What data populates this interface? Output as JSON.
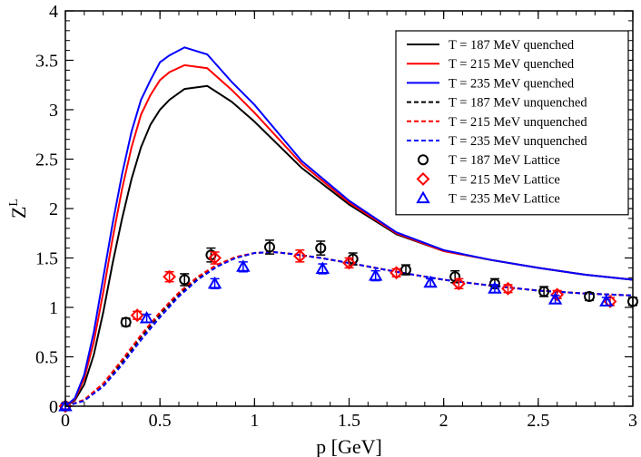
{
  "chart_data": {
    "type": "line",
    "xlabel": "p [GeV]",
    "ylabel": "Z",
    "ylabel_sup": "L",
    "xlim": [
      0,
      3
    ],
    "ylim": [
      0,
      4
    ],
    "x_ticks": [
      0,
      0.5,
      1,
      1.5,
      2,
      2.5,
      3
    ],
    "y_ticks": [
      0,
      0.5,
      1,
      1.5,
      2,
      2.5,
      3,
      3.5,
      4
    ],
    "x_tick_labels": [
      "0",
      "0.5",
      "1",
      "1.5",
      "2",
      "2.5",
      "3"
    ],
    "y_tick_labels": [
      "0",
      "0.5",
      "1",
      "1.5",
      "2",
      "2.5",
      "3",
      "3.5",
      "4"
    ],
    "grid": false,
    "legend_position": "top-right",
    "series": [
      {
        "name": "T = 187 MeV quenched",
        "kind": "line",
        "style": "solid",
        "color": "#000000",
        "x": [
          0,
          0.05,
          0.1,
          0.15,
          0.2,
          0.25,
          0.3,
          0.35,
          0.4,
          0.45,
          0.5,
          0.55,
          0.63,
          0.75,
          0.88,
          1.0,
          1.25,
          1.5,
          1.75,
          2.0,
          2.25,
          2.5,
          2.75,
          3.0
        ],
        "y": [
          0,
          0.06,
          0.22,
          0.52,
          0.95,
          1.45,
          1.9,
          2.3,
          2.62,
          2.85,
          3.0,
          3.1,
          3.21,
          3.24,
          3.08,
          2.88,
          2.41,
          2.04,
          1.74,
          1.57,
          1.48,
          1.4,
          1.33,
          1.28
        ]
      },
      {
        "name": "T = 215 MeV quenched",
        "kind": "line",
        "style": "solid",
        "color": "#ff0000",
        "x": [
          0,
          0.05,
          0.1,
          0.15,
          0.2,
          0.25,
          0.3,
          0.35,
          0.4,
          0.45,
          0.5,
          0.55,
          0.63,
          0.75,
          0.88,
          1.0,
          1.25,
          1.5,
          1.75,
          2.0,
          2.25,
          2.5,
          2.75,
          3.0
        ],
        "y": [
          0,
          0.07,
          0.28,
          0.65,
          1.15,
          1.7,
          2.2,
          2.62,
          2.95,
          3.15,
          3.3,
          3.38,
          3.45,
          3.42,
          3.2,
          2.97,
          2.45,
          2.06,
          1.75,
          1.57,
          1.48,
          1.4,
          1.33,
          1.28
        ]
      },
      {
        "name": "T = 235 MeV quenched",
        "kind": "line",
        "style": "solid",
        "color": "#0000ff",
        "x": [
          0,
          0.05,
          0.1,
          0.15,
          0.2,
          0.25,
          0.3,
          0.35,
          0.4,
          0.45,
          0.5,
          0.55,
          0.63,
          0.75,
          0.88,
          1.0,
          1.25,
          1.5,
          1.75,
          2.0,
          2.25,
          2.5,
          2.75,
          3.0
        ],
        "y": [
          0,
          0.08,
          0.32,
          0.75,
          1.3,
          1.85,
          2.35,
          2.78,
          3.1,
          3.3,
          3.48,
          3.55,
          3.63,
          3.56,
          3.28,
          3.05,
          2.48,
          2.08,
          1.76,
          1.58,
          1.48,
          1.4,
          1.33,
          1.28
        ]
      },
      {
        "name": "T = 187 MeV unquenched",
        "kind": "line",
        "style": "dashed",
        "color": "#000000",
        "x": [
          0,
          0.1,
          0.2,
          0.3,
          0.4,
          0.5,
          0.6,
          0.7,
          0.8,
          0.9,
          1.0,
          1.1,
          1.2,
          1.35,
          1.5,
          1.75,
          2.0,
          2.25,
          2.5,
          2.75,
          3.0
        ],
        "y": [
          0,
          0.06,
          0.22,
          0.45,
          0.7,
          0.93,
          1.13,
          1.3,
          1.42,
          1.5,
          1.55,
          1.56,
          1.54,
          1.5,
          1.45,
          1.36,
          1.28,
          1.22,
          1.17,
          1.14,
          1.12
        ]
      },
      {
        "name": "T = 215 MeV unquenched",
        "kind": "line",
        "style": "dashed",
        "color": "#ff0000",
        "x": [
          0,
          0.1,
          0.2,
          0.3,
          0.4,
          0.5,
          0.6,
          0.7,
          0.8,
          0.9,
          1.0,
          1.1,
          1.2,
          1.35,
          1.5,
          1.75,
          2.0,
          2.25,
          2.5,
          2.75,
          3.0
        ],
        "y": [
          0,
          0.065,
          0.23,
          0.47,
          0.72,
          0.95,
          1.15,
          1.31,
          1.43,
          1.51,
          1.55,
          1.56,
          1.54,
          1.5,
          1.45,
          1.36,
          1.28,
          1.22,
          1.17,
          1.14,
          1.12
        ]
      },
      {
        "name": "T = 235 MeV unquenched",
        "kind": "line",
        "style": "dashed",
        "color": "#0000ff",
        "x": [
          0,
          0.1,
          0.2,
          0.3,
          0.4,
          0.5,
          0.6,
          0.7,
          0.8,
          0.9,
          1.0,
          1.1,
          1.2,
          1.35,
          1.5,
          1.75,
          2.0,
          2.25,
          2.5,
          2.75,
          3.0
        ],
        "y": [
          0,
          0.055,
          0.2,
          0.42,
          0.67,
          0.9,
          1.11,
          1.28,
          1.41,
          1.5,
          1.55,
          1.56,
          1.54,
          1.5,
          1.45,
          1.36,
          1.28,
          1.22,
          1.17,
          1.14,
          1.12
        ]
      },
      {
        "name": "T = 187 MeV Lattice",
        "kind": "points",
        "marker": "circle",
        "color": "#000000",
        "x": [
          0,
          0.32,
          0.63,
          0.77,
          1.08,
          1.35,
          1.52,
          1.8,
          2.06,
          2.27,
          2.53,
          2.77,
          3.0
        ],
        "y": [
          0,
          0.85,
          1.28,
          1.53,
          1.61,
          1.6,
          1.49,
          1.38,
          1.31,
          1.24,
          1.16,
          1.11,
          1.06
        ],
        "err": [
          0.03,
          0.04,
          0.06,
          0.07,
          0.07,
          0.07,
          0.06,
          0.05,
          0.06,
          0.05,
          0.05,
          0.04,
          0.04
        ]
      },
      {
        "name": "T = 215 MeV Lattice",
        "kind": "points",
        "marker": "diamond",
        "color": "#ff0000",
        "x": [
          0,
          0.38,
          0.55,
          0.79,
          1.24,
          1.5,
          1.75,
          2.08,
          2.34,
          2.6,
          2.88
        ],
        "y": [
          0,
          0.92,
          1.31,
          1.5,
          1.52,
          1.45,
          1.35,
          1.24,
          1.19,
          1.13,
          1.06
        ],
        "err": [
          0.03,
          0.04,
          0.05,
          0.06,
          0.06,
          0.05,
          0.04,
          0.05,
          0.04,
          0.04,
          0.04
        ]
      },
      {
        "name": "T = 235 MeV Lattice",
        "kind": "points",
        "marker": "triangle",
        "color": "#0000ff",
        "x": [
          0,
          0.43,
          0.79,
          0.94,
          1.36,
          1.64,
          1.93,
          2.27,
          2.59,
          2.86
        ],
        "y": [
          0,
          0.89,
          1.24,
          1.41,
          1.39,
          1.32,
          1.25,
          1.19,
          1.08,
          1.06
        ],
        "err": [
          0.03,
          0.04,
          0.05,
          0.05,
          0.05,
          0.05,
          0.04,
          0.04,
          0.04,
          0.04
        ]
      }
    ]
  }
}
